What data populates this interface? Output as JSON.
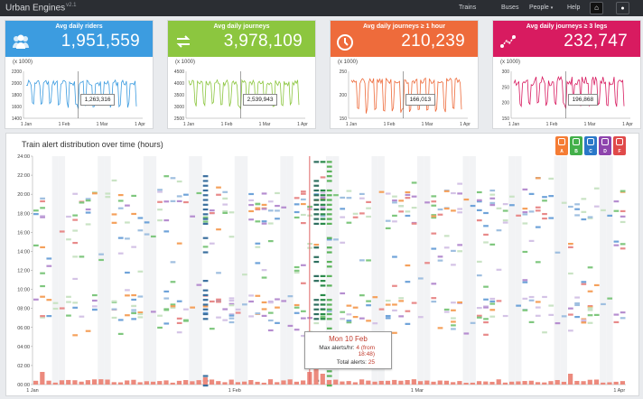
{
  "navbar": {
    "brand": "Urban Engines",
    "version": "v2.1",
    "items": [
      "Trains",
      "Buses",
      "People",
      "Help"
    ],
    "home_icon": "home-icon",
    "user_icon": "user-icon"
  },
  "cards": [
    {
      "title": "Avg daily riders",
      "value": "1,951,559",
      "color": "#3c9ce0",
      "icon": "people-icon",
      "unit": "(x 1000)",
      "yticks": [
        "2200",
        "2000",
        "1800",
        "1600",
        "1400"
      ],
      "xticks": [
        "1 Jan",
        "1 Feb",
        "1 Mar",
        "1 Apr"
      ],
      "tooltip": "1,263,316",
      "line_color": "#3c9ce0"
    },
    {
      "title": "Avg daily journeys",
      "value": "3,978,109",
      "color": "#8cc63f",
      "icon": "transfer-icon",
      "unit": "(x 1000)",
      "yticks": [
        "4500",
        "4000",
        "3500",
        "3000",
        "2500"
      ],
      "xticks": [
        "1 Jan",
        "1 Feb",
        "1 Mar",
        "1 Apr"
      ],
      "tooltip": "2,539,943",
      "line_color": "#8cc63f"
    },
    {
      "title": "Avg daily journeys ≥ 1 hour",
      "value": "210,239",
      "color": "#ee6b3b",
      "icon": "clock-icon",
      "unit": "(x 1000)",
      "yticks": [
        "250",
        "200",
        "150"
      ],
      "xticks": [
        "1 Jan",
        "1 Feb",
        "1 Mar",
        "1 Apr"
      ],
      "tooltip": "166,013",
      "line_color": "#ee6b3b"
    },
    {
      "title": "Avg daily journeys ≥ 3 legs",
      "value": "232,747",
      "color": "#d81b60",
      "icon": "route-icon",
      "unit": "(x 1000)",
      "yticks": [
        "300",
        "250",
        "200",
        "150"
      ],
      "xticks": [
        "1 Jan",
        "1 Feb",
        "1 Mar",
        "1 Apr"
      ],
      "tooltip": "196,868",
      "line_color": "#d81b60"
    }
  ],
  "alerts": {
    "title": "Train alert distribution over time (hours)",
    "legend": [
      {
        "label": "A",
        "color": "#f57c34"
      },
      {
        "label": "B",
        "color": "#43b04a"
      },
      {
        "label": "C",
        "color": "#2a78c8"
      },
      {
        "label": "D",
        "color": "#8e44ad"
      },
      {
        "label": "F",
        "color": "#e04a4a"
      }
    ],
    "yticks": [
      "24:00",
      "22:00",
      "20:00",
      "18:00",
      "16:00",
      "14:00",
      "12:00",
      "10:00",
      "08:00",
      "06:00",
      "04:00",
      "02:00",
      "00:00"
    ],
    "xticks": [
      "1 Jan",
      "1 Feb",
      "1 Mar",
      "1 Apr"
    ],
    "tooltip": {
      "title": "Mon 10 Feb",
      "max_label": "Max alerts/hr:",
      "max_value": "4 (from 18:48)",
      "total_label": "Total alerts:",
      "total_value": "25"
    }
  }
}
